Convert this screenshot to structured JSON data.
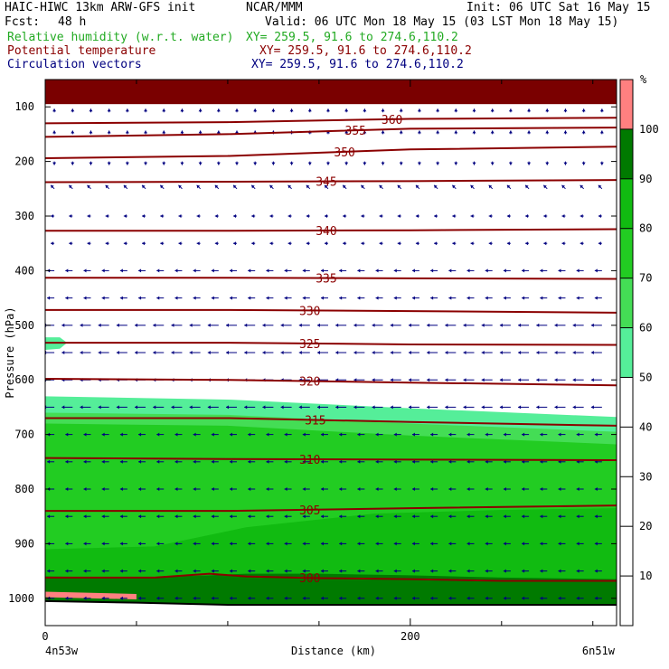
{
  "header": {
    "model": "HAIC-HIWC 13km ARW-GFS init",
    "org": "NCAR/MMM",
    "init": "Init: 06 UTC Sat 16 May 15",
    "fcst_label": "Fcst:",
    "fcst_value": "48 h",
    "valid": "Valid: 06 UTC Mon 18 May 15 (03 LST Mon 18 May 15)",
    "fields": [
      {
        "name": "Relative humidity (w.r.t. water)",
        "xy": "XY= 259.5, 91.6 to 274.6,110.2",
        "color": "#22aa22"
      },
      {
        "name": "Potential temperature",
        "xy": "XY= 259.5, 91.6 to 274.6,110.2",
        "color": "#8b0000"
      },
      {
        "name": "Circulation vectors",
        "xy": "XY= 259.5, 91.6 to 274.6,110.2",
        "color": "#000080"
      }
    ]
  },
  "chart_data": {
    "type": "heatmap",
    "title": "",
    "xlabel": "Distance (km)",
    "ylabel": "Pressure (hPa)",
    "xlim": [
      0,
      313
    ],
    "ylim": [
      1050,
      50
    ],
    "y_scale": "linear, inverted",
    "x_ticks": [
      0,
      200
    ],
    "y_ticks": [
      100,
      200,
      300,
      400,
      500,
      600,
      700,
      800,
      900,
      1000
    ],
    "x_endpoints": {
      "left": "4n53w",
      "right": "6n51w"
    },
    "colorbar": {
      "unit": "%",
      "labels": [
        10,
        20,
        30,
        40,
        50,
        60,
        70,
        80,
        90,
        100
      ],
      "levels": [
        50,
        60,
        70,
        80,
        90,
        100
      ],
      "colors": [
        "#55ee99",
        "#44dd55",
        "#22cc22",
        "#11bb11",
        "#007a00",
        "#ff8080"
      ]
    },
    "rh_bands": [
      {
        "level": 50,
        "color": "#55ee99",
        "top": [
          [
            0,
            630
          ],
          [
            100,
            636
          ],
          [
            200,
            652
          ],
          [
            313,
            668
          ]
        ],
        "bottom": [
          [
            0,
            1050
          ],
          [
            313,
            1050
          ]
        ]
      },
      {
        "level": 60,
        "color": "#44dd55",
        "top": [
          [
            0,
            660
          ],
          [
            100,
            664
          ],
          [
            200,
            680
          ],
          [
            313,
            695
          ]
        ],
        "bottom": [
          [
            0,
            1050
          ],
          [
            313,
            1050
          ]
        ]
      },
      {
        "level": 70,
        "color": "#22cc22",
        "top": [
          [
            0,
            680
          ],
          [
            100,
            684
          ],
          [
            200,
            702
          ],
          [
            313,
            718
          ]
        ],
        "bottom": [
          [
            0,
            1050
          ],
          [
            313,
            1050
          ]
        ]
      },
      {
        "level": 80,
        "color": "#11bb11",
        "top": [
          [
            0,
            910
          ],
          [
            60,
            905
          ],
          [
            110,
            870
          ],
          [
            180,
            845
          ],
          [
            250,
            838
          ],
          [
            313,
            835
          ]
        ],
        "bottom": [
          [
            0,
            1050
          ],
          [
            313,
            1050
          ]
        ]
      },
      {
        "level": 90,
        "color": "#007a00",
        "top": [
          [
            0,
            960
          ],
          [
            50,
            962
          ],
          [
            90,
            958
          ],
          [
            110,
            955
          ],
          [
            150,
            955
          ],
          [
            200,
            958
          ],
          [
            250,
            962
          ],
          [
            313,
            965
          ]
        ],
        "bottom": [
          [
            0,
            1050
          ],
          [
            313,
            1050
          ]
        ]
      },
      {
        "level": 50,
        "color": "#55ee99",
        "top": [
          [
            0,
            522
          ],
          [
            8,
            522
          ],
          [
            12,
            532
          ],
          [
            8,
            543
          ],
          [
            0,
            545
          ]
        ],
        "bottom": [],
        "closed": true
      }
    ],
    "top_dark_band": {
      "color": "#7a0000",
      "p_top": 50,
      "p_bottom": 95
    },
    "theta_contours": [
      {
        "value": 300,
        "label_x": 145,
        "points": [
          [
            0,
            962
          ],
          [
            60,
            962
          ],
          [
            90,
            955
          ],
          [
            110,
            960
          ],
          [
            150,
            963
          ],
          [
            200,
            965
          ],
          [
            250,
            968
          ],
          [
            313,
            968
          ]
        ]
      },
      {
        "value": 305,
        "label_x": 145,
        "points": [
          [
            0,
            840
          ],
          [
            100,
            840
          ],
          [
            200,
            835
          ],
          [
            313,
            830
          ]
        ]
      },
      {
        "value": 310,
        "label_x": 145,
        "points": [
          [
            0,
            743
          ],
          [
            100,
            745
          ],
          [
            200,
            746
          ],
          [
            313,
            747
          ]
        ]
      },
      {
        "value": 315,
        "label_x": 148,
        "points": [
          [
            0,
            670
          ],
          [
            100,
            670
          ],
          [
            200,
            677
          ],
          [
            313,
            684
          ]
        ]
      },
      {
        "value": 320,
        "label_x": 145,
        "points": [
          [
            0,
            598
          ],
          [
            100,
            600
          ],
          [
            200,
            605
          ],
          [
            313,
            610
          ]
        ]
      },
      {
        "value": 325,
        "label_x": 145,
        "points": [
          [
            0,
            532
          ],
          [
            100,
            532
          ],
          [
            200,
            535
          ],
          [
            313,
            536
          ]
        ]
      },
      {
        "value": 330,
        "label_x": 145,
        "points": [
          [
            0,
            472
          ],
          [
            100,
            472
          ],
          [
            200,
            474
          ],
          [
            313,
            477
          ]
        ]
      },
      {
        "value": 335,
        "label_x": 154,
        "points": [
          [
            0,
            413
          ],
          [
            100,
            413
          ],
          [
            200,
            414
          ],
          [
            313,
            415
          ]
        ]
      },
      {
        "value": 340,
        "label_x": 154,
        "points": [
          [
            0,
            327
          ],
          [
            100,
            327
          ],
          [
            200,
            326
          ],
          [
            313,
            324
          ]
        ]
      },
      {
        "value": 345,
        "label_x": 154,
        "points": [
          [
            0,
            238
          ],
          [
            100,
            237
          ],
          [
            200,
            236
          ],
          [
            313,
            234
          ]
        ]
      },
      {
        "value": 350,
        "label_x": 164,
        "points": [
          [
            0,
            194
          ],
          [
            100,
            190
          ],
          [
            200,
            178
          ],
          [
            313,
            173
          ]
        ]
      },
      {
        "value": 355,
        "label_x": 170,
        "points": [
          [
            0,
            155
          ],
          [
            100,
            150
          ],
          [
            200,
            140
          ],
          [
            313,
            138
          ]
        ]
      },
      {
        "value": 360,
        "label_x": 190,
        "points": [
          [
            0,
            130
          ],
          [
            100,
            128
          ],
          [
            200,
            122
          ],
          [
            313,
            120
          ]
        ]
      }
    ],
    "theta_color": "#8b0000",
    "wind": {
      "color": "#000080",
      "x_stations": [
        5,
        15,
        25,
        35,
        45,
        55,
        65,
        75,
        85,
        95,
        105,
        115,
        125,
        135,
        145,
        155,
        165,
        175,
        185,
        195,
        205,
        215,
        225,
        235,
        245,
        255,
        265,
        275,
        285,
        295,
        305
      ],
      "levels": [
        {
          "p": 110,
          "u": 0,
          "w": 1
        },
        {
          "p": 150,
          "u": 0,
          "w": 1
        },
        {
          "p": 200,
          "u": 0,
          "w": -1
        },
        {
          "p": 250,
          "u": -1,
          "w": 1
        },
        {
          "p": 300,
          "u": -1,
          "w": 0
        },
        {
          "p": 350,
          "u": -1,
          "w": 0
        },
        {
          "p": 400,
          "u": -2,
          "w": 0
        },
        {
          "p": 450,
          "u": -2,
          "w": 0
        },
        {
          "p": 500,
          "u": -3,
          "w": 0
        },
        {
          "p": 550,
          "u": -3,
          "w": 0
        },
        {
          "p": 600,
          "u": -3,
          "w": 0
        },
        {
          "p": 650,
          "u": -3,
          "w": 0
        },
        {
          "p": 700,
          "u": -2,
          "w": 0
        },
        {
          "p": 750,
          "u": -2,
          "w": 0
        },
        {
          "p": 800,
          "u": -2,
          "w": 0
        },
        {
          "p": 850,
          "u": -2,
          "w": 0
        },
        {
          "p": 900,
          "u": -2,
          "w": 0
        },
        {
          "p": 950,
          "u": -2,
          "w": 0
        },
        {
          "p": 1000,
          "u": -2,
          "w": 0
        }
      ]
    },
    "terrain": [
      [
        0,
        1005
      ],
      [
        50,
        1008
      ],
      [
        100,
        1012
      ],
      [
        150,
        1012
      ],
      [
        200,
        1012
      ],
      [
        250,
        1012
      ],
      [
        313,
        1012
      ]
    ]
  }
}
